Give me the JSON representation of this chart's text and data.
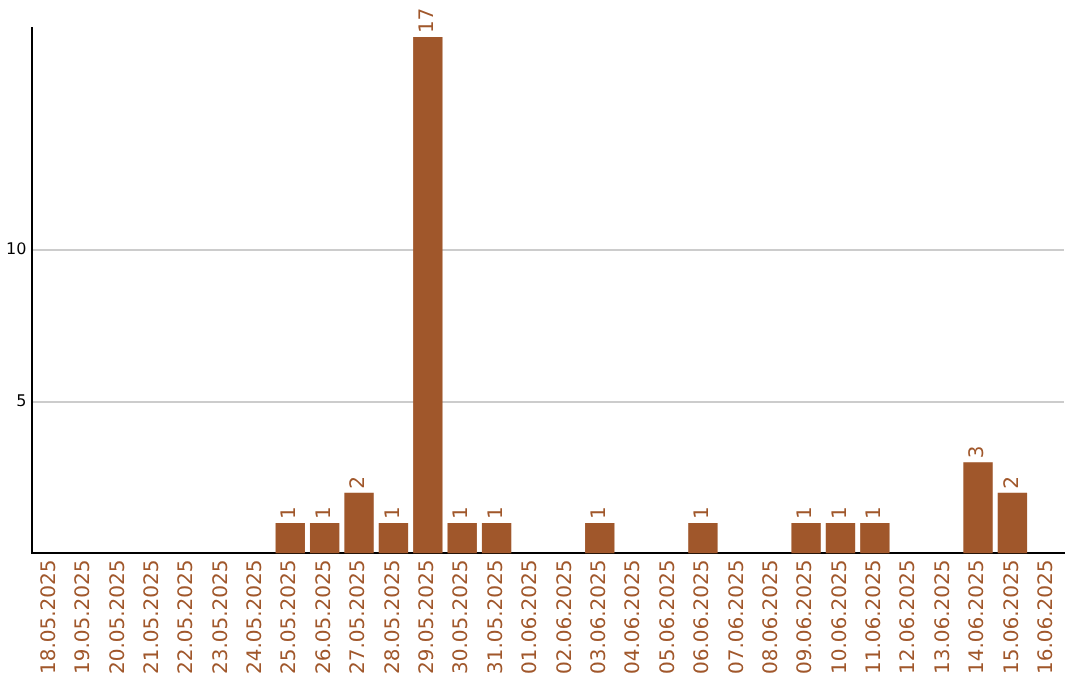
{
  "chart_data": {
    "type": "bar",
    "categories": [
      "18.05.2025",
      "19.05.2025",
      "20.05.2025",
      "21.05.2025",
      "22.05.2025",
      "23.05.2025",
      "24.05.2025",
      "25.05.2025",
      "26.05.2025",
      "27.05.2025",
      "28.05.2025",
      "29.05.2025",
      "30.05.2025",
      "31.05.2025",
      "01.06.2025",
      "02.06.2025",
      "03.06.2025",
      "04.06.2025",
      "05.06.2025",
      "06.06.2025",
      "07.06.2025",
      "08.06.2025",
      "09.06.2025",
      "10.06.2025",
      "11.06.2025",
      "12.06.2025",
      "13.06.2025",
      "14.06.2025",
      "15.06.2025",
      "16.06.2025"
    ],
    "values": [
      0,
      0,
      0,
      0,
      0,
      0,
      0,
      1,
      1,
      2,
      1,
      17,
      1,
      1,
      0,
      0,
      1,
      0,
      0,
      1,
      0,
      0,
      1,
      1,
      1,
      0,
      0,
      3,
      2,
      0
    ],
    "value_labels": [
      null,
      null,
      null,
      null,
      null,
      null,
      null,
      "1",
      "1",
      "2",
      "1",
      "17",
      "1",
      "1",
      null,
      null,
      "1",
      null,
      null,
      "1",
      null,
      null,
      "1",
      "1",
      "1",
      null,
      null,
      "3",
      "2",
      null
    ],
    "color": "#a0572b",
    "ylim": [
      0,
      17.3
    ],
    "yticks": [
      5,
      10
    ],
    "grid": "y"
  }
}
